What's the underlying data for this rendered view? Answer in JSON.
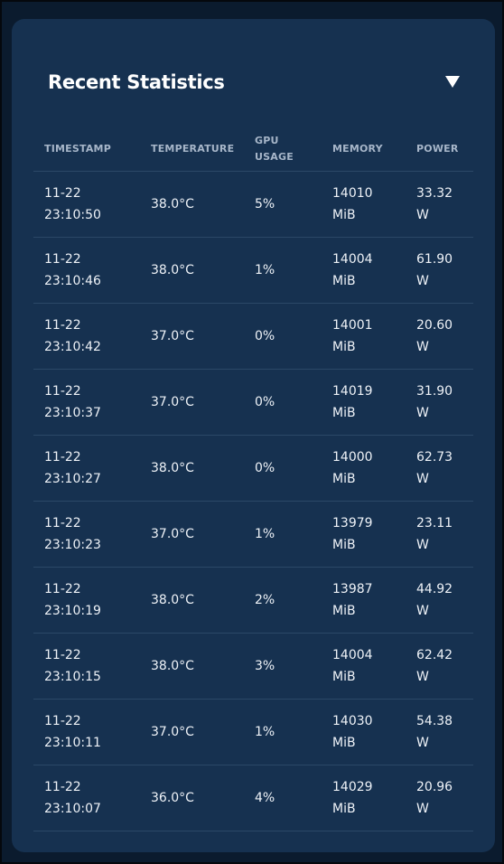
{
  "card": {
    "title": "Recent Statistics",
    "toggle_icon": "triangle-down-icon"
  },
  "table": {
    "headers": {
      "timestamp": "TIMESTAMP",
      "temperature": "TEMPERATURE",
      "gpu_usage": "GPU\nUSAGE",
      "memory": "MEMORY",
      "power": "POWER"
    },
    "rows": [
      {
        "timestamp": "11-22\n23:10:50",
        "temperature": "38.0°C",
        "gpu_usage": "5%",
        "memory": "14010\nMiB",
        "power": "33.32\nW"
      },
      {
        "timestamp": "11-22\n23:10:46",
        "temperature": "38.0°C",
        "gpu_usage": "1%",
        "memory": "14004\nMiB",
        "power": "61.90\nW"
      },
      {
        "timestamp": "11-22\n23:10:42",
        "temperature": "37.0°C",
        "gpu_usage": "0%",
        "memory": "14001\nMiB",
        "power": "20.60\nW"
      },
      {
        "timestamp": "11-22\n23:10:37",
        "temperature": "37.0°C",
        "gpu_usage": "0%",
        "memory": "14019\nMiB",
        "power": "31.90\nW"
      },
      {
        "timestamp": "11-22\n23:10:27",
        "temperature": "38.0°C",
        "gpu_usage": "0%",
        "memory": "14000\nMiB",
        "power": "62.73\nW"
      },
      {
        "timestamp": "11-22\n23:10:23",
        "temperature": "37.0°C",
        "gpu_usage": "1%",
        "memory": "13979\nMiB",
        "power": "23.11\nW"
      },
      {
        "timestamp": "11-22\n23:10:19",
        "temperature": "38.0°C",
        "gpu_usage": "2%",
        "memory": "13987\nMiB",
        "power": "44.92\nW"
      },
      {
        "timestamp": "11-22\n23:10:15",
        "temperature": "38.0°C",
        "gpu_usage": "3%",
        "memory": "14004\nMiB",
        "power": "62.42\nW"
      },
      {
        "timestamp": "11-22\n23:10:11",
        "temperature": "37.0°C",
        "gpu_usage": "1%",
        "memory": "14030\nMiB",
        "power": "54.38\nW"
      },
      {
        "timestamp": "11-22\n23:10:07",
        "temperature": "36.0°C",
        "gpu_usage": "4%",
        "memory": "14029\nMiB",
        "power": "20.96\nW"
      }
    ]
  }
}
